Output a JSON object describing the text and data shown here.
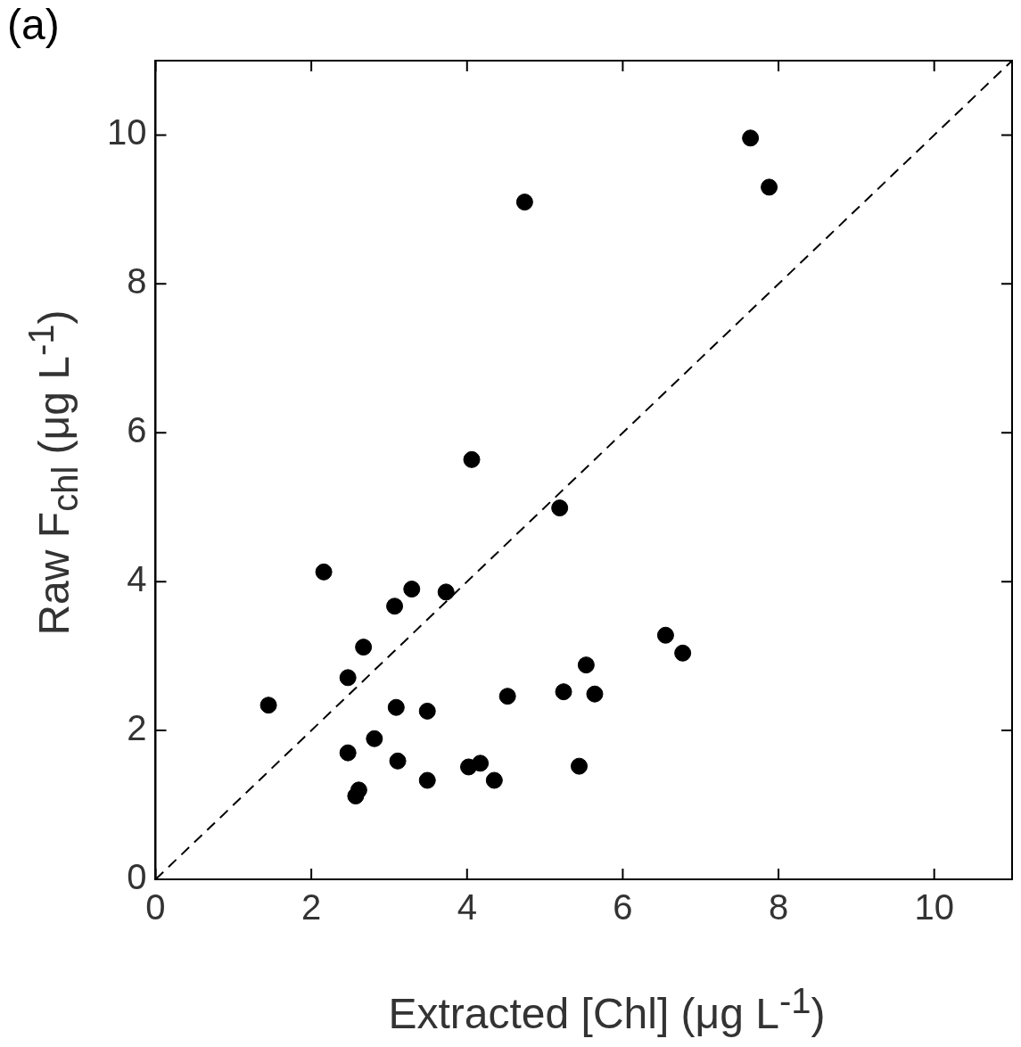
{
  "chart_data": {
    "type": "scatter",
    "title": "(a)",
    "xlabel": "Extracted [Chl] (μg L$^{-1}$)",
    "ylabel": "Raw F$_{chl}$ (μg L$^{-1}$)",
    "xlim": [
      0,
      11
    ],
    "ylim": [
      0,
      11
    ],
    "xticks": [
      0,
      2,
      4,
      6,
      8,
      10
    ],
    "yticks": [
      0,
      2,
      4,
      6,
      8,
      10
    ],
    "grid": false,
    "legend": false,
    "marker": "circle",
    "series": [
      {
        "color": "#000000",
        "x": [
          7.64,
          7.88,
          4.74,
          4.06,
          5.19,
          2.16,
          3.29,
          3.73,
          3.07,
          2.67,
          2.47,
          1.45,
          6.55,
          6.77,
          5.53,
          5.24,
          5.64,
          4.52,
          3.09,
          3.49,
          2.81,
          2.47,
          3.11,
          4.02,
          4.17,
          5.44,
          3.49,
          4.35,
          2.61,
          2.57
        ],
        "values": [
          9.96,
          9.3,
          9.1,
          5.64,
          4.99,
          4.13,
          3.9,
          3.86,
          3.67,
          3.12,
          2.71,
          2.34,
          3.28,
          3.04,
          2.88,
          2.52,
          2.49,
          2.46,
          2.31,
          2.26,
          1.89,
          1.7,
          1.59,
          1.51,
          1.56,
          1.52,
          1.33,
          1.33,
          1.2,
          1.12
        ]
      },
      {
        "type": "line",
        "color": "#000000",
        "line_style": "dashed",
        "marker": "none",
        "x": [
          0,
          11
        ],
        "values": [
          0,
          11
        ]
      }
    ]
  }
}
